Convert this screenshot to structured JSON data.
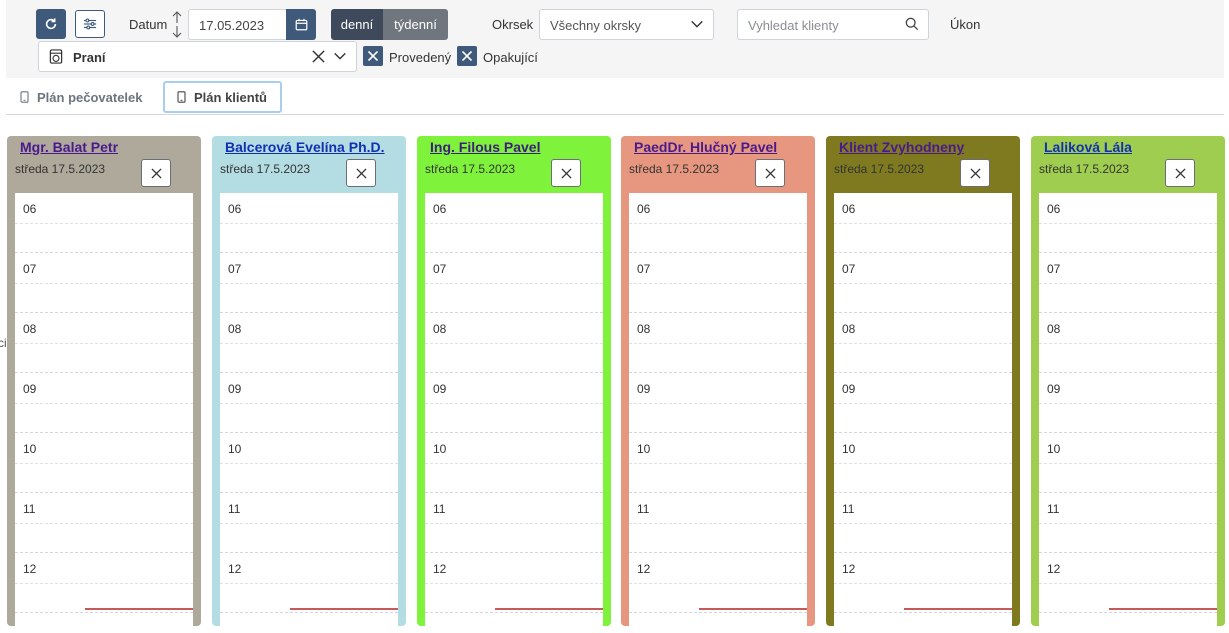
{
  "toolbar": {
    "date_label": "Datum",
    "date_value": "17.05.2023",
    "view_day": "denní",
    "view_week": "týdenní",
    "district_label": "Okrsek",
    "district_value": "Všechny okrsky",
    "search_placeholder": "Vyhledat klienty",
    "action_label": "Úkon",
    "selected_action": "Praní",
    "done_label": "Provedený",
    "repeating_label": "Opakující"
  },
  "tabs": [
    {
      "label": "Plán pečovatelek",
      "active": false
    },
    {
      "label": "Plán klientů",
      "active": true
    }
  ],
  "edge_text": "ci",
  "columns": [
    {
      "name": "Mgr. Balat Petr",
      "date": "středa 17.5.2023",
      "bg": "#aea99a",
      "name_color": "#4a1a8c"
    },
    {
      "name": "Balcerová Evelína Ph.D.",
      "date": "středa 17.5.2023",
      "bg": "#b3dde3",
      "name_color": "#1230b0"
    },
    {
      "name": "Ing. Filous Pavel",
      "date": "středa 17.5.2023",
      "bg": "#7ff23b",
      "name_color": "#3c1f7c"
    },
    {
      "name": "PaedDr. Hlučný Pavel",
      "date": "středa 17.5.2023",
      "bg": "#e7977f",
      "name_color": "#4a1a8c"
    },
    {
      "name": "Klient Zvyhodneny",
      "date": "středa 17.5.2023",
      "bg": "#7f7a1f",
      "name_color": "#4a1a8c"
    },
    {
      "name": "Laliková Lála",
      "date": "středa 17.5.2023",
      "bg": "#9fcd4f",
      "name_color": "#1230b0"
    }
  ],
  "hours": [
    "06",
    "07",
    "08",
    "09",
    "10",
    "11",
    "12"
  ],
  "colors": {
    "primary": "#3e5979",
    "now_line": "#c55a5a"
  }
}
